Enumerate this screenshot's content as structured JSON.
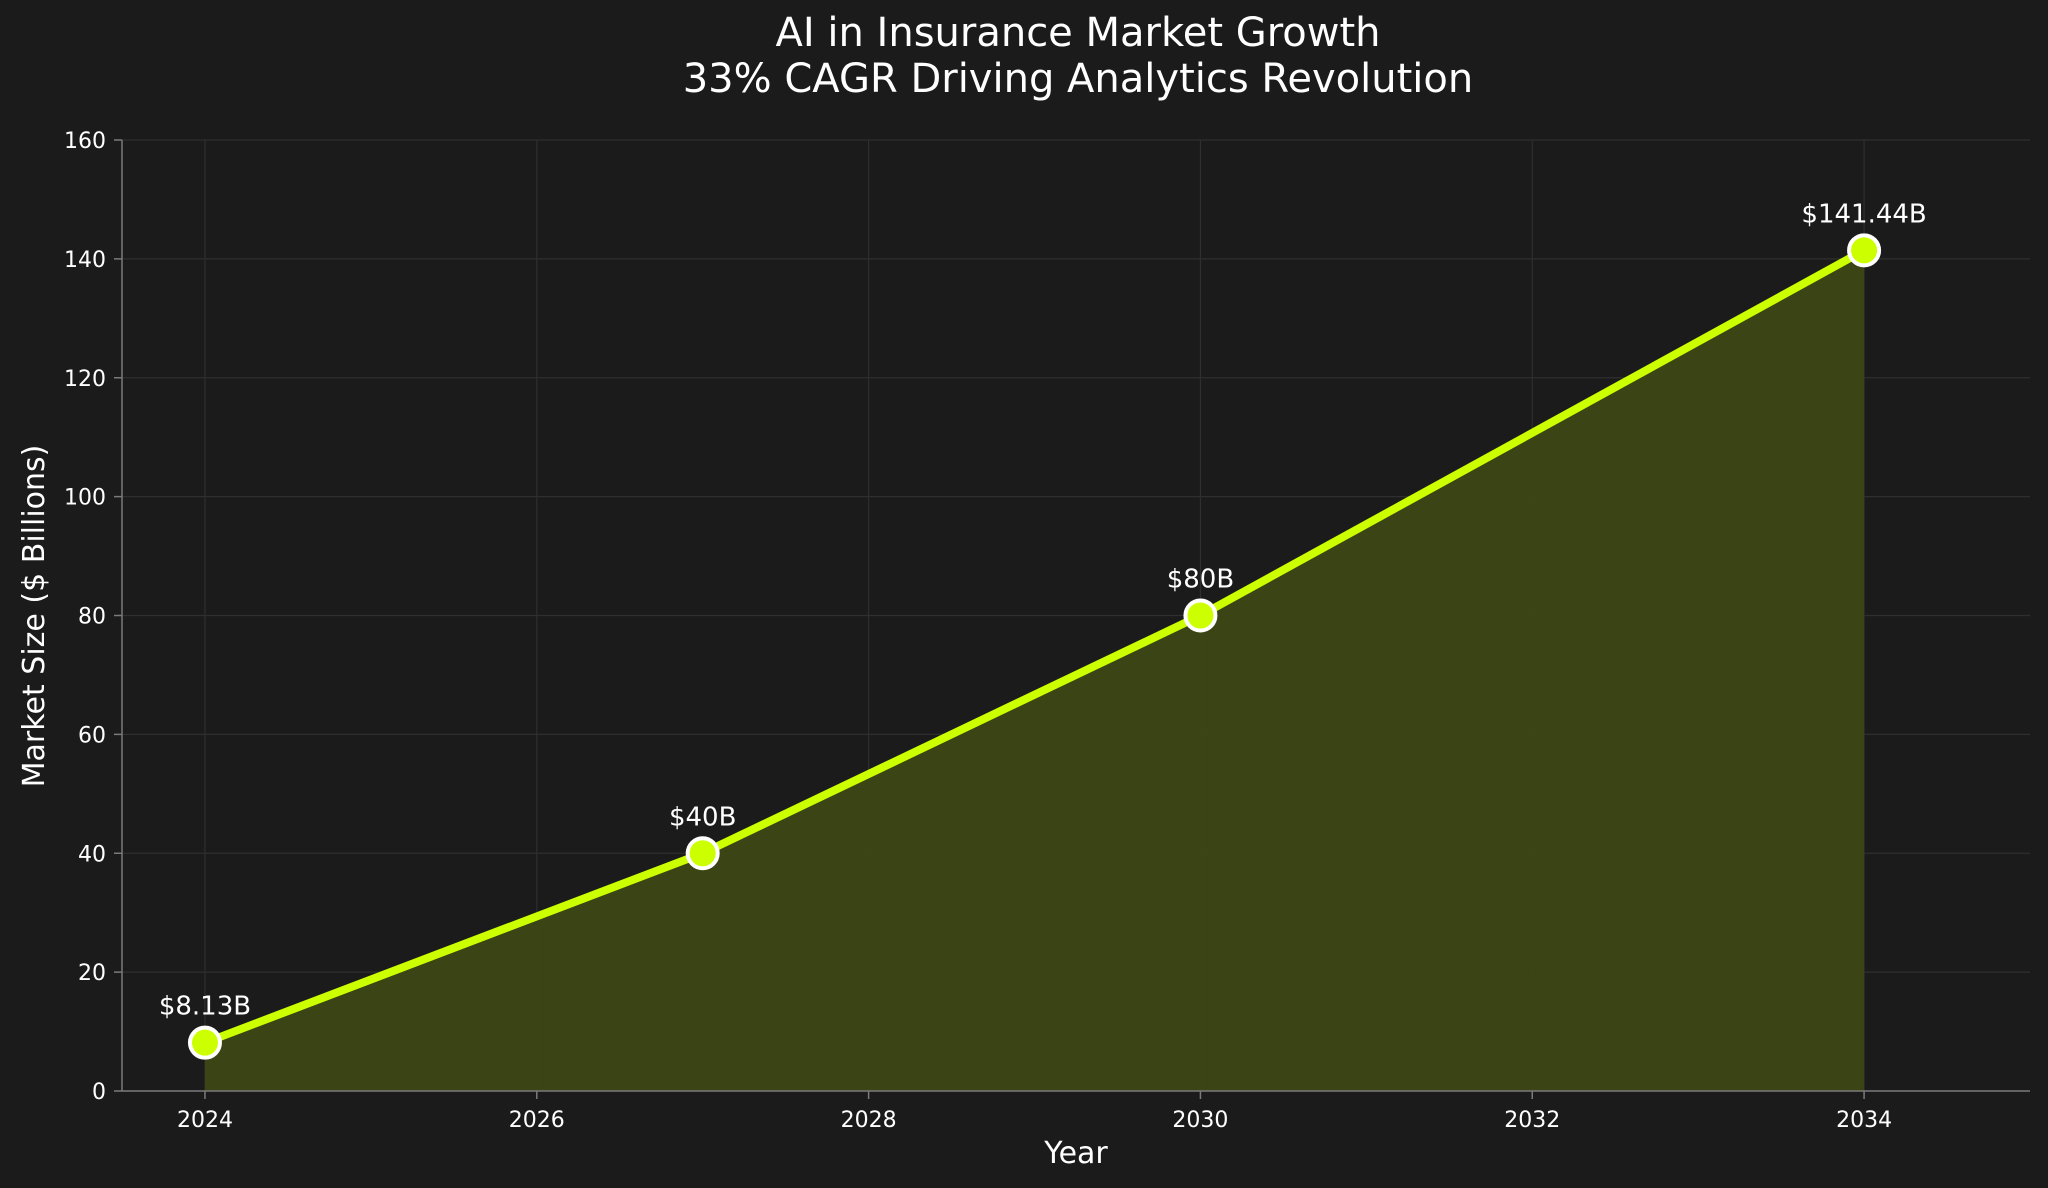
{
  "chart_data": {
    "type": "line",
    "title_line1": "AI in Insurance Market Growth",
    "title_line2": "33% CAGR Driving Analytics Revolution",
    "xlabel": "Year",
    "ylabel": "Market Size ($ Billions)",
    "xlim": [
      2023.5,
      2035.0
    ],
    "ylim": [
      0,
      160
    ],
    "x_ticks": [
      "2024",
      "2026",
      "2028",
      "2030",
      "2032",
      "2034"
    ],
    "y_ticks": [
      "0",
      "20",
      "40",
      "60",
      "80",
      "100",
      "120",
      "140",
      "160"
    ],
    "grid": true,
    "series": [
      {
        "name": "Market Size",
        "x": [
          2024,
          2027,
          2030,
          2034
        ],
        "values": [
          8.13,
          40,
          80,
          141.44
        ],
        "labels": [
          "$8.13B",
          "$40B",
          "$80B",
          "$141.44B"
        ]
      }
    ],
    "colors": {
      "background": "#1b1b1b",
      "line": "#ccff00",
      "fill": "#3d4715",
      "marker_edge": "#ffffff",
      "text": "#ffffff",
      "grid": "#2f2f2f"
    }
  }
}
